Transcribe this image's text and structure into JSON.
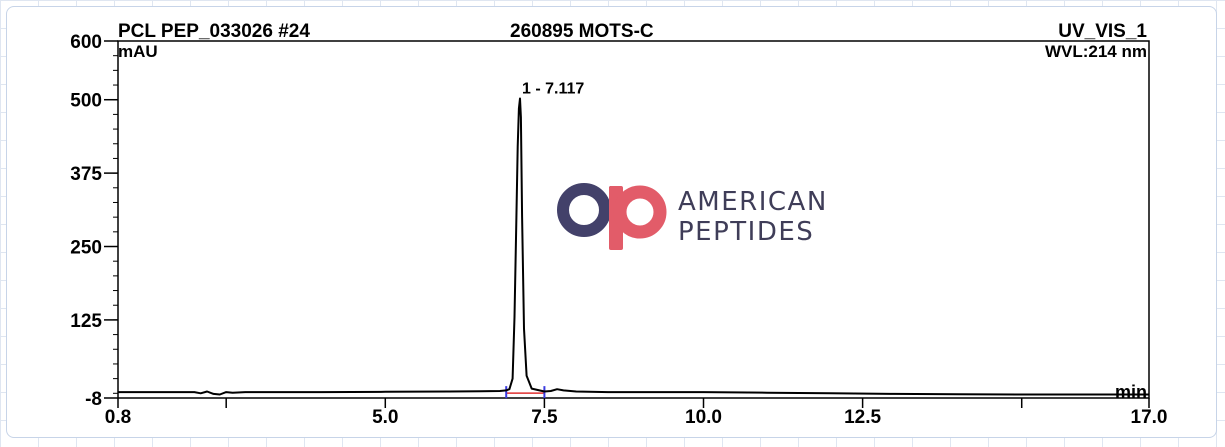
{
  "header": {
    "sample": "PCL PEP_033026 #24",
    "product": "260895 MOTS-C",
    "channel": "UV_VIS_1",
    "wavelength": "WVL:214 nm"
  },
  "logo": {
    "line1": "AMERICAN",
    "line2": "PEPTIDES",
    "colors": {
      "a": "#43416a",
      "p": "#e25c69"
    }
  },
  "chart_data": {
    "type": "line",
    "title": "",
    "xlabel": "min",
    "ylabel": "mAU",
    "xlim": [
      0.8,
      17.0
    ],
    "ylim": [
      -8,
      600
    ],
    "x_ticks": [
      {
        "value": 0.8,
        "label": "0.8"
      },
      {
        "value": 5.0,
        "label": "5.0"
      },
      {
        "value": 7.5,
        "label": "7.5"
      },
      {
        "value": 10.0,
        "label": "10.0"
      },
      {
        "value": 12.5,
        "label": "12.5"
      },
      {
        "value": 17.0,
        "label": "17.0"
      }
    ],
    "x_minor_ticks": [
      0.8,
      2.5,
      5.0,
      7.5,
      10.0,
      12.5,
      15.0,
      17.0
    ],
    "y_ticks": [
      {
        "value": 600,
        "label": "600"
      },
      {
        "value": 500,
        "label": "500"
      },
      {
        "value": 375,
        "label": "375"
      },
      {
        "value": 250,
        "label": "250"
      },
      {
        "value": 125,
        "label": "125"
      },
      {
        "value": -8,
        "label": "-8"
      }
    ],
    "grid": false,
    "series": [
      {
        "color": "#000000",
        "x": [
          0.8,
          2.0,
          2.1,
          2.2,
          2.3,
          2.4,
          2.5,
          2.6,
          2.8,
          3.0,
          3.5,
          4.0,
          5.0,
          6.0,
          6.5,
          6.8,
          6.9,
          6.95,
          7.0,
          7.03,
          7.06,
          7.08,
          7.1,
          7.117,
          7.13,
          7.15,
          7.18,
          7.22,
          7.3,
          7.5,
          7.6,
          7.7,
          7.8,
          8.0,
          8.5,
          9.0,
          10.0,
          11.0,
          12.0,
          13.0,
          14.0,
          15.0,
          16.0,
          17.0
        ],
        "y": [
          2,
          2,
          0,
          3,
          -1,
          -2,
          2,
          1,
          2,
          2,
          2,
          2,
          2.5,
          3,
          3.5,
          4,
          5,
          7,
          25,
          130,
          300,
          420,
          485,
          502,
          470,
          300,
          110,
          30,
          8,
          3,
          4,
          7,
          5,
          3,
          2,
          2,
          2,
          1,
          0,
          -1,
          -1.5,
          -2,
          -2,
          -2
        ]
      }
    ],
    "annotations": [
      {
        "text": "1 - 7.117",
        "x": 7.117,
        "y": 502
      }
    ],
    "baseline": {
      "x": [
        6.9,
        7.5
      ],
      "color": "#e03030"
    },
    "integration_markers": [
      {
        "x": 6.9,
        "color": "#3a3ae0"
      },
      {
        "x": 7.5,
        "color": "#3a3ae0"
      }
    ]
  }
}
